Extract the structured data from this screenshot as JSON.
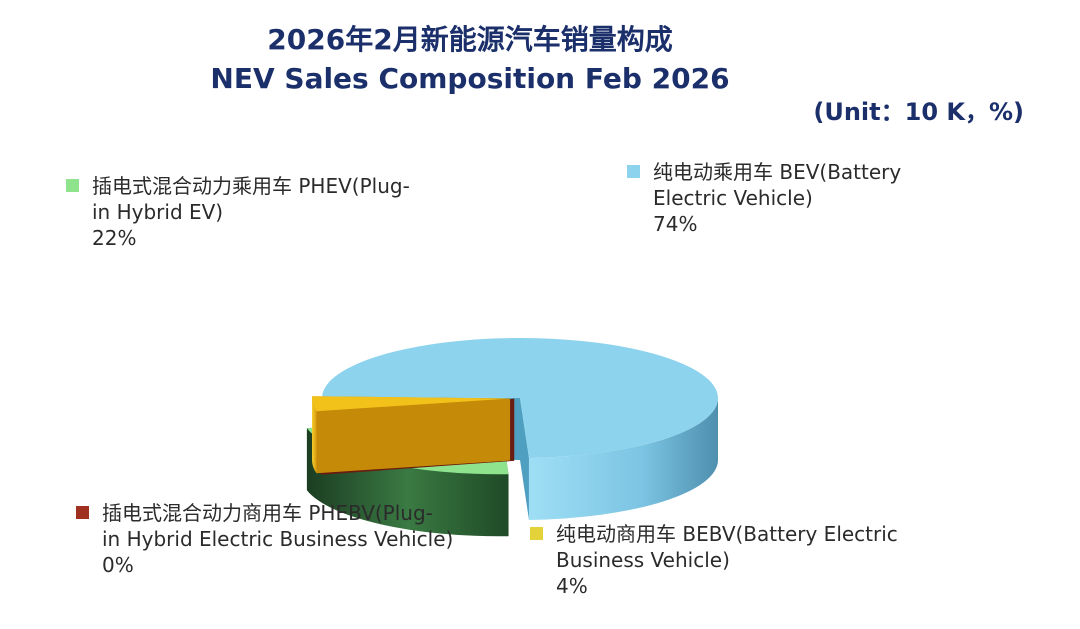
{
  "title": {
    "cn": "2026年2月新能源汽车销量构成",
    "en": "NEV Sales Composition Feb 2026",
    "unit": "(Unit：10 K，%)"
  },
  "chart_data": {
    "type": "pie",
    "style": "3d-exploded",
    "title": "2026年2月新能源汽车销量构成 / NEV Sales Composition Feb 2026",
    "unit": "(Unit：10 K，%)",
    "series": [
      {
        "name": "纯电动乘用车 BEV(Battery Electric Vehicle)",
        "value": 74,
        "label": "74%",
        "color": "#8dd3ee",
        "dark": "#4f9fc1"
      },
      {
        "name": "插电式混合动力乘用车 PHEV(Plug-in Hybrid EV)",
        "value": 22,
        "label": "22%",
        "color": "#8fe38d",
        "dark": "#2f6b36"
      },
      {
        "name": "插电式混合动力商用车 PHEBV(Plug-in Hybrid Electric Business Vehicle)",
        "value": 0,
        "label": "0%",
        "color": "#a0301f",
        "dark": "#6a1c10"
      },
      {
        "name": "纯电动商用车 BEBV(Battery Electric Business Vehicle)",
        "value": 4,
        "label": "4%",
        "color": "#f3c21a",
        "dark": "#c58a08"
      }
    ],
    "legend_placement": "around-pie",
    "grid": false
  },
  "legend": {
    "bev": {
      "line1": "纯电动乘用车 BEV(Battery",
      "line2": "Electric Vehicle)",
      "pct": "74%",
      "color": "#8dd3ee"
    },
    "phev": {
      "line1": "插电式混合动力乘用车 PHEV(Plug-",
      "line2": "in Hybrid EV)",
      "pct": "22%",
      "color": "#8fe38d"
    },
    "phebv": {
      "line1": "插电式混合动力商用车 PHEBV(Plug-",
      "line2": "in Hybrid Electric Business Vehicle)",
      "pct": "0%",
      "color": "#a0301f"
    },
    "bebv": {
      "line1": "纯电动商用车 BEBV(Battery Electric",
      "line2": "Business Vehicle)",
      "pct": "4%",
      "color": "#e3d23a"
    }
  }
}
